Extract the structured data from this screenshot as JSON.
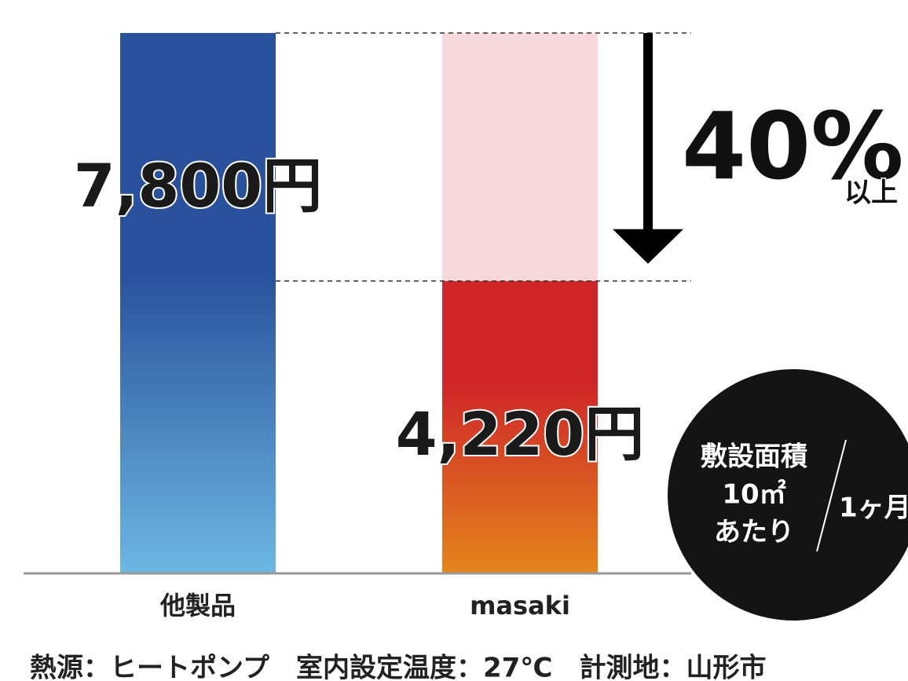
{
  "chart_data": {
    "type": "bar",
    "categories": [
      "他製品",
      "masaki"
    ],
    "values": [
      7800,
      4220
    ],
    "value_labels": [
      "7,800円",
      "4,220円"
    ],
    "colors": [
      [
        "#2a529c",
        "#6cb7e4"
      ],
      [
        "#cf2629",
        "#e4851c"
      ]
    ],
    "background_color": "#f7d9db",
    "annotation": {
      "text": "40%",
      "sub": "以上"
    },
    "badge": {
      "lines": [
        "敷設面積",
        "10㎡",
        "あたり"
      ],
      "period": "1ヶ月"
    },
    "note": "熱源：ヒートポンプ　室内設定温度：27℃　計測地：山形市"
  }
}
